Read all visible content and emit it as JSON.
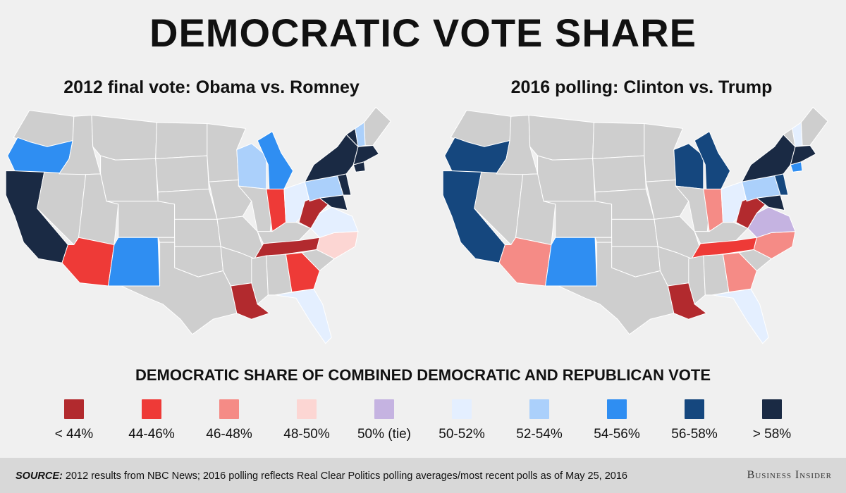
{
  "title": "DEMOCRATIC VOTE SHARE",
  "maps": {
    "left_title": "2012 final vote: Obama vs. Romney",
    "right_title": "2016 polling: Clinton vs. Trump"
  },
  "legend": {
    "title": "DEMOCRATIC SHARE OF COMBINED DEMOCRATIC AND REPUBLICAN VOTE",
    "items": [
      {
        "label": "< 44%",
        "color": "#b22a2e"
      },
      {
        "label": "44-46%",
        "color": "#ee3a37"
      },
      {
        "label": "46-48%",
        "color": "#f58b86"
      },
      {
        "label": "48-50%",
        "color": "#fcd6d3"
      },
      {
        "label": "50% (tie)",
        "color": "#c5b3e1"
      },
      {
        "label": "50-52%",
        "color": "#e4efff"
      },
      {
        "label": "52-54%",
        "color": "#abd0fb"
      },
      {
        "label": "54-56%",
        "color": "#2f8ef2"
      },
      {
        "label": "56-58%",
        "color": "#15477e"
      },
      {
        "label": "> 58%",
        "color": "#1a2a44"
      }
    ]
  },
  "map_colors": {
    "no_data": "#cecece",
    "border": "#ffffff"
  },
  "chart_data": {
    "type": "map",
    "charts": [
      {
        "title": "2012 final vote: Obama vs. Romney",
        "states": {
          "OR": "54-56%",
          "CA": "> 58%",
          "AZ": "44-46%",
          "NM": "54-56%",
          "LA": "< 44%",
          "TN": "< 44%",
          "GA": "44-46%",
          "IN": "44-46%",
          "WV": "< 44%",
          "NC": "48-50%",
          "FL": "50-52%",
          "VA": "50-52%",
          "OH": "50-52%",
          "WI": "52-54%",
          "MI": "54-56%",
          "PA": "52-54%",
          "NY": "> 58%",
          "NJ": "> 58%",
          "MD": "> 58%",
          "NH": "52-54%",
          "MA": "> 58%",
          "CT": "> 58%",
          "VT": "> 58%"
        }
      },
      {
        "title": "2016 polling: Clinton vs. Trump",
        "states": {
          "OR": "56-58%",
          "CA": "56-58%",
          "AZ": "46-48%",
          "NM": "54-56%",
          "LA": "< 44%",
          "TN": "44-46%",
          "GA": "46-48%",
          "IN": "46-48%",
          "WV": "< 44%",
          "NC": "46-48%",
          "FL": "50-52%",
          "VA": "50% (tie)",
          "OH": "50-52%",
          "WI": "56-58%",
          "MI": "56-58%",
          "PA": "52-54%",
          "NY": "> 58%",
          "NJ": "56-58%",
          "MD": "> 58%",
          "NH": "50-52%",
          "MA": "> 58%",
          "CT": "54-56%"
        }
      }
    ]
  },
  "footer": {
    "source_label": "SOURCE:",
    "source_text": " 2012 results from NBC News; 2016 polling reflects Real Clear Politics polling averages/most recent polls as of May 25, 2016",
    "brand": "Business Insider"
  }
}
